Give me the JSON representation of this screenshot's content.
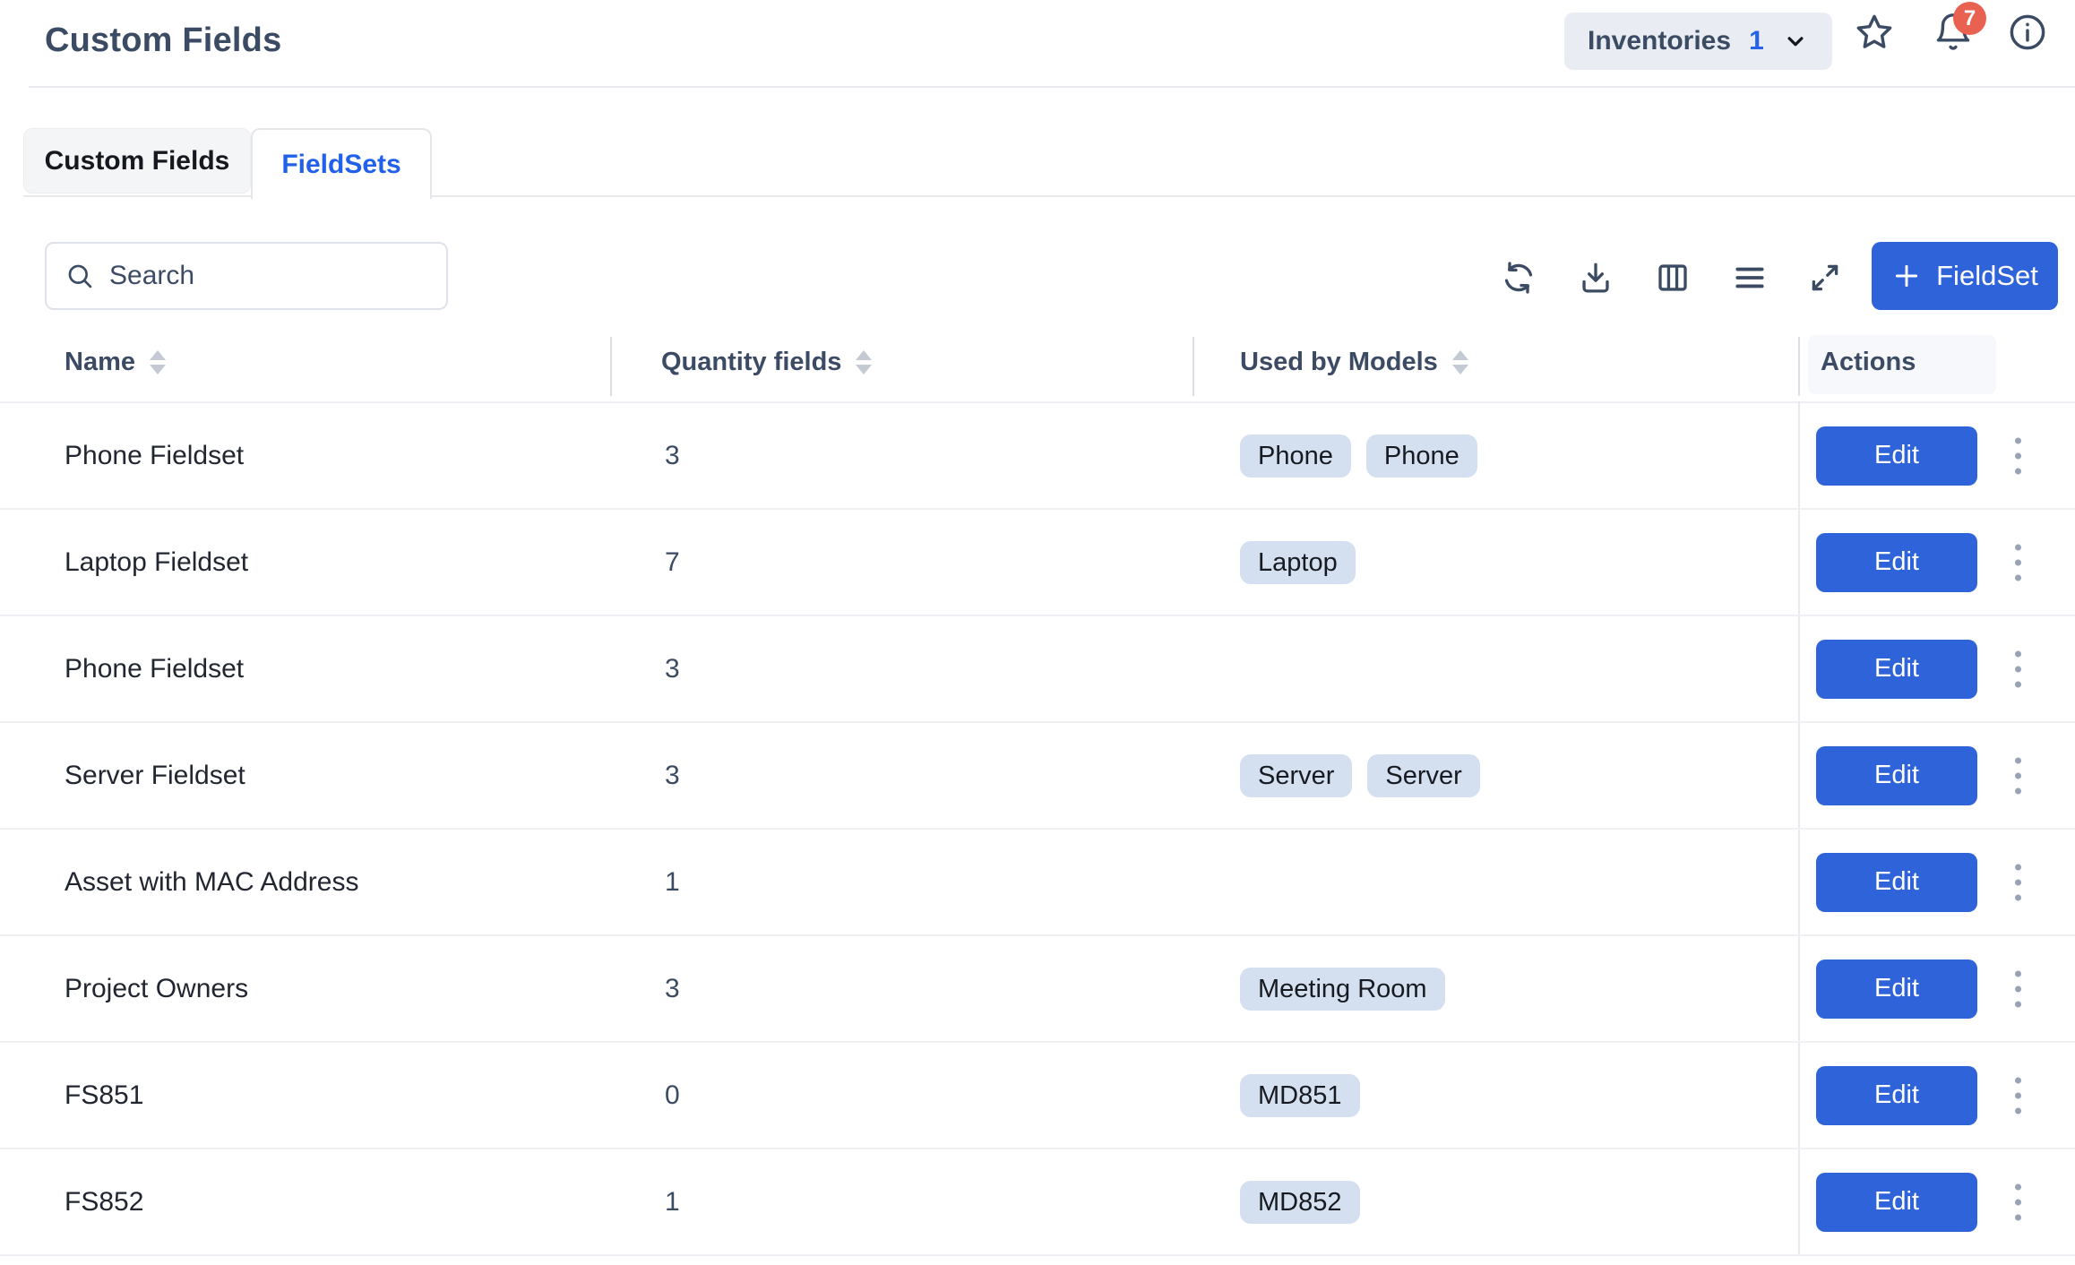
{
  "header": {
    "title": "Custom Fields",
    "workspace_selector": {
      "label": "Inventories",
      "count": "1"
    },
    "notifications": {
      "count": "7"
    }
  },
  "tabs": [
    {
      "label": "Custom Fields",
      "active": false
    },
    {
      "label": "FieldSets",
      "active": true
    }
  ],
  "toolbar": {
    "search": {
      "placeholder": "Search"
    },
    "icon_names": [
      "refresh-icon",
      "download-icon",
      "columns-icon",
      "menu-icon",
      "expand-icon"
    ],
    "add_button": {
      "label": "FieldSet"
    }
  },
  "table": {
    "columns": [
      {
        "label": "Name",
        "sortable": true
      },
      {
        "label": "Quantity fields",
        "sortable": true
      },
      {
        "label": "Used by Models",
        "sortable": true
      },
      {
        "label": "Actions",
        "sortable": false
      }
    ],
    "edit_label": "Edit",
    "rows": [
      {
        "name": "Phone Fieldset",
        "quantity": "3",
        "models": [
          "Phone",
          "Phone"
        ]
      },
      {
        "name": "Laptop Fieldset",
        "quantity": "7",
        "models": [
          "Laptop"
        ]
      },
      {
        "name": "Phone Fieldset",
        "quantity": "3",
        "models": []
      },
      {
        "name": "Server Fieldset",
        "quantity": "3",
        "models": [
          "Server",
          "Server"
        ]
      },
      {
        "name": "Asset with MAC Address",
        "quantity": "1",
        "models": []
      },
      {
        "name": "Project Owners",
        "quantity": "3",
        "models": [
          "Meeting Room"
        ]
      },
      {
        "name": "FS851",
        "quantity": "0",
        "models": [
          "MD851"
        ]
      },
      {
        "name": "FS852",
        "quantity": "1",
        "models": [
          "MD852"
        ]
      }
    ]
  },
  "colors": {
    "accent_blue": "#2e63d9",
    "tab_active_blue": "#2160e8",
    "badge_bg": "#d4dff0",
    "notification_red": "#e96150",
    "slate_text": "#3c4b64"
  }
}
